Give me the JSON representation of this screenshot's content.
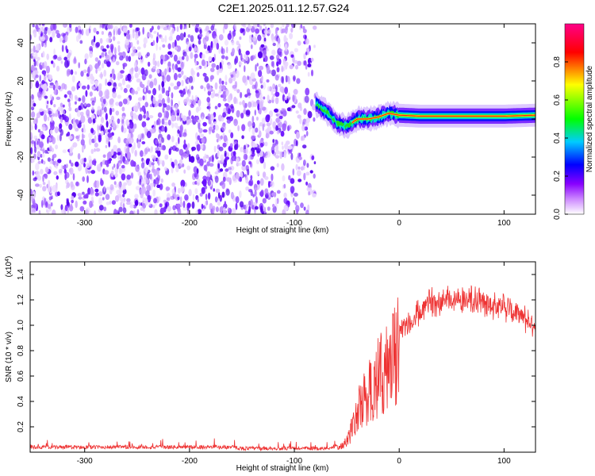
{
  "title": "C2E1.2025.011.12.57.G24",
  "chart_data": [
    {
      "type": "heatmap",
      "xlabel": "Height of straight line (km)",
      "ylabel": "Frequency (Hz)",
      "xlim": [
        -352,
        130
      ],
      "ylim": [
        -50,
        50
      ],
      "xticks": [
        -300,
        -200,
        -100,
        0,
        100
      ],
      "yticks": [
        -40,
        -20,
        0,
        20,
        40
      ],
      "colorbar": {
        "label": "Normalized spectral amplitude",
        "range": [
          0,
          1
        ],
        "ticks": [
          0.0,
          0.2,
          0.4,
          0.6,
          0.8
        ],
        "colors": [
          "#ffffff",
          "#8800ff",
          "#0000ff",
          "#00ffff",
          "#00ff00",
          "#ffff00",
          "#ff0000",
          "#ff0088"
        ]
      },
      "signal_center_hz": [
        [
          -80,
          8
        ],
        [
          -70,
          4
        ],
        [
          -60,
          -2
        ],
        [
          -50,
          -4
        ],
        [
          -40,
          0
        ],
        [
          -30,
          0
        ],
        [
          -20,
          1
        ],
        [
          -10,
          3
        ],
        [
          0,
          2
        ],
        [
          20,
          1.5
        ],
        [
          50,
          1.5
        ],
        [
          100,
          1.5
        ],
        [
          130,
          2
        ]
      ],
      "noise_region_km": [
        -352,
        -80
      ]
    },
    {
      "type": "line",
      "xlabel": "Height of straight line (km)",
      "ylabel": "SNR (10 * v/v)",
      "yunit": "x10^4",
      "xlim": [
        -352,
        130
      ],
      "ylim": [
        0,
        1.5
      ],
      "xticks": [
        -300,
        -200,
        -100,
        0,
        100
      ],
      "yticks": [
        0.2,
        0.4,
        0.6,
        0.8,
        1.0,
        1.2,
        1.4
      ],
      "series": [
        {
          "color": "#ee3333",
          "x": [
            -352,
            -300,
            -250,
            -200,
            -160,
            -150,
            -100,
            -70,
            -55,
            -50,
            -45,
            -40,
            -30,
            -20,
            -10,
            -5,
            0,
            10,
            20,
            30,
            40,
            60,
            80,
            100,
            110,
            120,
            130
          ],
          "y": [
            0.04,
            0.04,
            0.04,
            0.04,
            0.04,
            0.03,
            0.03,
            0.03,
            0.05,
            0.1,
            0.2,
            0.35,
            0.5,
            0.65,
            0.75,
            0.85,
            0.95,
            1.0,
            1.1,
            1.18,
            1.2,
            1.22,
            1.18,
            1.15,
            1.1,
            1.05,
            1.0
          ]
        }
      ]
    }
  ],
  "superscript_4": "4",
  "scale_prefix": "(x10",
  "scale_suffix": ")"
}
